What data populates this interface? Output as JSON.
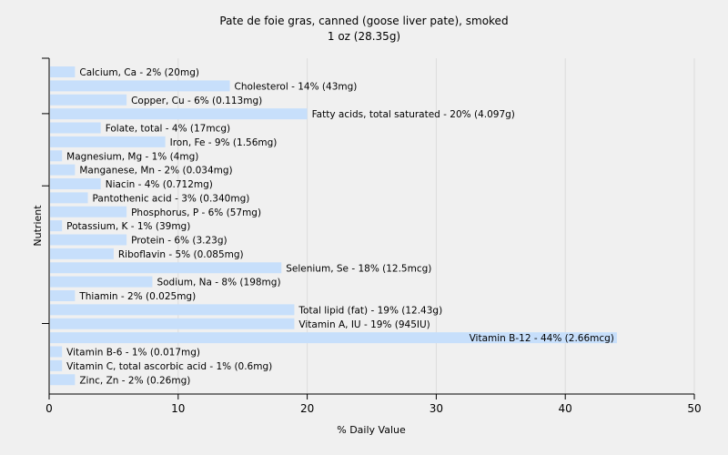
{
  "chart_data": {
    "type": "bar",
    "orientation": "horizontal",
    "title": "Pate de foie gras, canned (goose liver pate), smoked",
    "subtitle": "1 oz (28.35g)",
    "xlabel": "% Daily Value",
    "ylabel": "Nutrient",
    "xlim": [
      0,
      50
    ],
    "xticks": [
      0,
      10,
      20,
      30,
      40,
      50
    ],
    "grid": true,
    "bar_color": "#c7dffb",
    "background": "#f0f0f0",
    "categories": [
      "Calcium, Ca",
      "Cholesterol",
      "Copper, Cu",
      "Fatty acids, total saturated",
      "Folate, total",
      "Iron, Fe",
      "Magnesium, Mg",
      "Manganese, Mn",
      "Niacin",
      "Pantothenic acid",
      "Phosphorus, P",
      "Potassium, K",
      "Protein",
      "Riboflavin",
      "Selenium, Se",
      "Sodium, Na",
      "Thiamin",
      "Total lipid (fat)",
      "Vitamin A, IU",
      "Vitamin B-12",
      "Vitamin B-6",
      "Vitamin C, total ascorbic acid",
      "Zinc, Zn"
    ],
    "values": [
      2,
      14,
      6,
      20,
      4,
      9,
      1,
      2,
      4,
      3,
      6,
      1,
      6,
      5,
      18,
      8,
      2,
      19,
      19,
      44,
      1,
      1,
      2
    ],
    "labels": [
      "Calcium, Ca - 2% (20mg)",
      "Cholesterol - 14% (43mg)",
      "Copper, Cu - 6% (0.113mg)",
      "Fatty acids, total saturated - 20% (4.097g)",
      "Folate, total - 4% (17mcg)",
      "Iron, Fe - 9% (1.56mg)",
      "Magnesium, Mg - 1% (4mg)",
      "Manganese, Mn - 2% (0.034mg)",
      "Niacin - 4% (0.712mg)",
      "Pantothenic acid - 3% (0.340mg)",
      "Phosphorus, P - 6% (57mg)",
      "Potassium, K - 1% (39mg)",
      "Protein - 6% (3.23g)",
      "Riboflavin - 5% (0.085mg)",
      "Selenium, Se - 18% (12.5mcg)",
      "Sodium, Na - 8% (198mg)",
      "Thiamin - 2% (0.025mg)",
      "Total lipid (fat) - 19% (12.43g)",
      "Vitamin A, IU - 19% (945IU)",
      "Vitamin B-12 - 44% (2.66mcg)",
      "Vitamin B-6 - 1% (0.017mg)",
      "Vitamin C, total ascorbic acid - 1% (0.6mg)",
      "Zinc, Zn - 2% (0.26mg)"
    ]
  }
}
